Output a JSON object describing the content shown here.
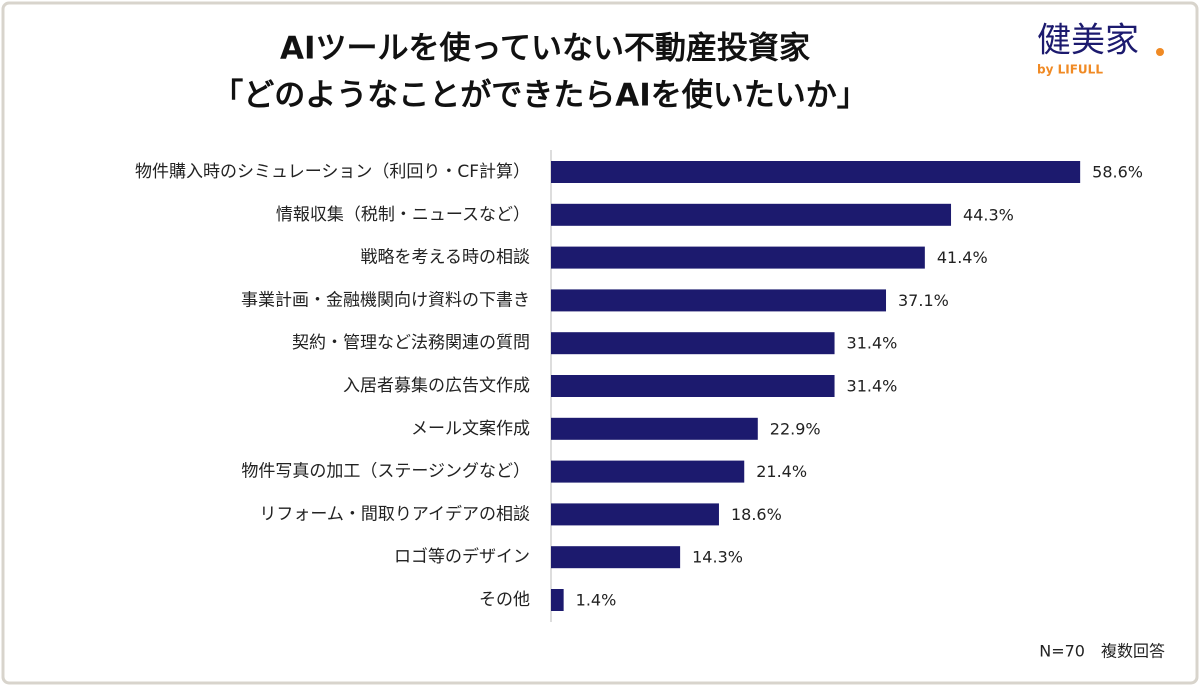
{
  "chart_data": {
    "type": "bar",
    "orientation": "horizontal",
    "title": [
      "AIツールを使っていない不動産投資家",
      "「どのようなことができたらAIを使いたいか」"
    ],
    "categories": [
      "物件購入時のシミュレーション（利回り・CF計算）",
      "情報収集（税制・ニュースなど）",
      "戦略を考える時の相談",
      "事業計画・金融機関向け資料の下書き",
      "契約・管理など法務関連の質問",
      "入居者募集の広告文作成",
      "メール文案作成",
      "物件写真の加工（ステージングなど）",
      "リフォーム・間取りアイデアの相談",
      "ロゴ等のデザイン",
      "その他"
    ],
    "values": [
      58.6,
      44.3,
      41.4,
      37.1,
      31.4,
      31.4,
      22.9,
      21.4,
      18.6,
      14.3,
      1.4
    ],
    "value_labels": [
      "58.6%",
      "44.3%",
      "41.4%",
      "37.1%",
      "31.4%",
      "31.4%",
      "22.9%",
      "21.4%",
      "18.6%",
      "14.3%",
      "1.4%"
    ],
    "color": "#1c1a6e",
    "note": "N=70　複数回答"
  },
  "logo": {
    "name": "健美家",
    "sub": "by LIFULL"
  }
}
